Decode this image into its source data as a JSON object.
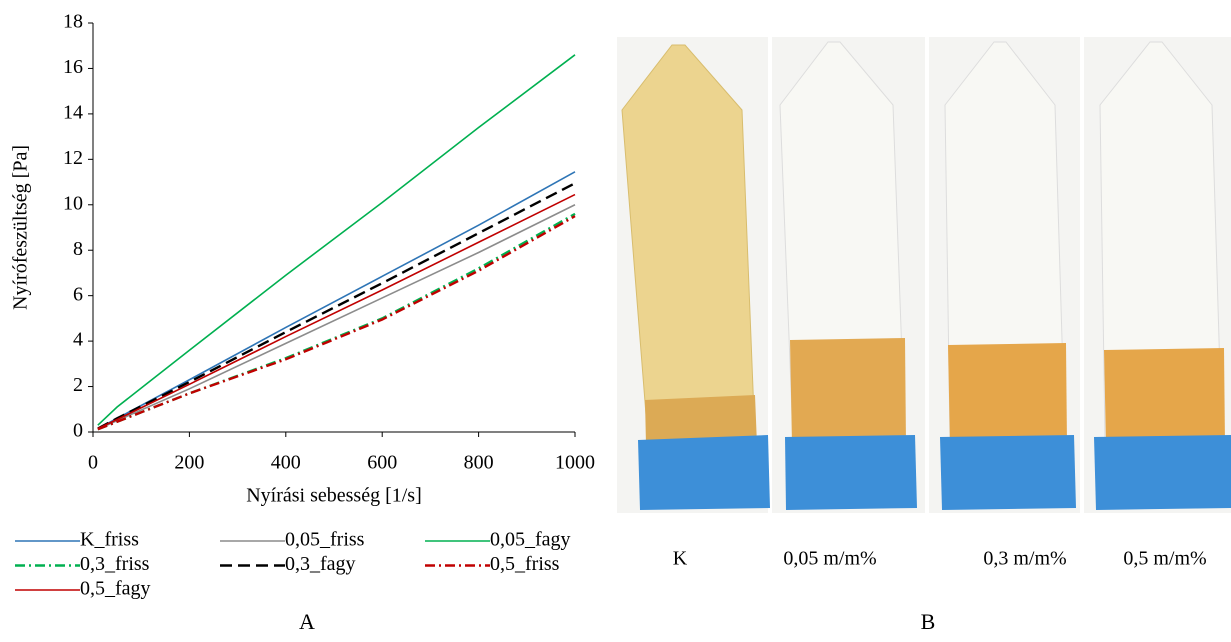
{
  "chart_data": {
    "type": "line",
    "xlabel": "Nyírási sebesség [1/s]",
    "ylabel": "Nyírófeszültség [Pa]",
    "x": [
      10,
      50,
      200,
      400,
      600,
      800,
      1000
    ],
    "xlim": [
      0,
      1000
    ],
    "xticks": [
      0,
      200,
      400,
      600,
      800,
      1000
    ],
    "ylim": [
      0,
      18
    ],
    "yticks": [
      0,
      2,
      4,
      6,
      8,
      10,
      12,
      14,
      16,
      18
    ],
    "series": [
      {
        "name": "K_friss",
        "color": "#2e75b6",
        "dash": "solid",
        "values": [
          0.15,
          0.6,
          2.3,
          4.6,
          6.85,
          9.1,
          11.45
        ]
      },
      {
        "name": "0,05_friss",
        "color": "#8c8c8c",
        "dash": "solid",
        "values": [
          0.12,
          0.5,
          1.9,
          3.9,
          5.9,
          7.9,
          10.0
        ]
      },
      {
        "name": "0,05_fagy",
        "color": "#00b050",
        "dash": "solid",
        "values": [
          0.3,
          1.1,
          3.6,
          6.9,
          10.1,
          13.4,
          16.6
        ]
      },
      {
        "name": "0,3_friss",
        "color": "#00b050",
        "dash": "dashdot",
        "values": [
          0.12,
          0.45,
          1.7,
          3.25,
          5.0,
          7.2,
          9.6
        ]
      },
      {
        "name": "0,3_fagy",
        "color": "#000000",
        "dash": "dashed",
        "values": [
          0.15,
          0.6,
          2.2,
          4.4,
          6.55,
          8.75,
          10.95
        ]
      },
      {
        "name": "0,5_friss",
        "color": "#c00000",
        "dash": "dashdot",
        "values": [
          0.12,
          0.45,
          1.7,
          3.2,
          4.95,
          7.1,
          9.5
        ]
      },
      {
        "name": "0,5_fagy",
        "color": "#c00000",
        "dash": "solid",
        "values": [
          0.15,
          0.55,
          2.1,
          4.2,
          6.25,
          8.35,
          10.45
        ]
      }
    ]
  },
  "photo": {
    "labels": [
      "K",
      "0,05 m/m%",
      "0,3 m/m%",
      "0,5 m/m%"
    ]
  },
  "panel_labels": [
    "A",
    "B"
  ]
}
